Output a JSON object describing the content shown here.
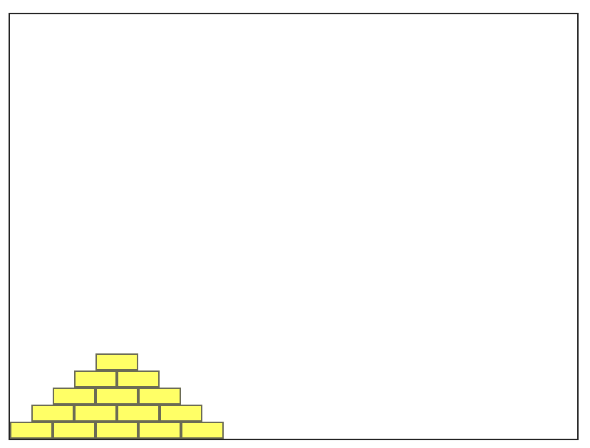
{
  "world": {
    "background_color": "#ffffff",
    "border_color": "#222222"
  },
  "pyramid": {
    "brick_color": "#ffff66",
    "brick_border_color": "#6b6b55",
    "rows_brick_counts": [
      5,
      4,
      3,
      2,
      1
    ]
  }
}
